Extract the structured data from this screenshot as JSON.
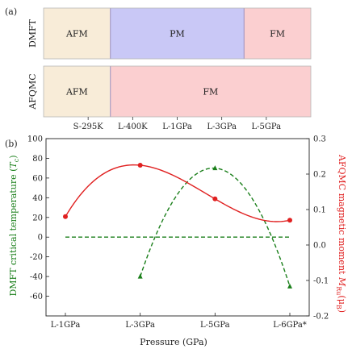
{
  "panel_a": {
    "label": "(a)",
    "x_ticks": [
      "S-295K",
      "L-400K",
      "L-1GPa",
      "L-3GPa",
      "L-5GPa"
    ],
    "rows": [
      {
        "name": "DMFT",
        "segments": [
          {
            "phase": "AFM",
            "from": 0,
            "to": 1.5,
            "color": "#f8ecd8"
          },
          {
            "phase": "PM",
            "from": 1.5,
            "to": 4.5,
            "color": "#c9c8f6"
          },
          {
            "phase": "FM",
            "from": 4.5,
            "to": 6.0,
            "color": "#fbcfd0"
          }
        ]
      },
      {
        "name": "AFQMC",
        "segments": [
          {
            "phase": "AFM",
            "from": 0,
            "to": 1.5,
            "color": "#f8ecd8"
          },
          {
            "phase": "FM",
            "from": 1.5,
            "to": 6.0,
            "color": "#fbcfd0"
          }
        ]
      }
    ]
  },
  "panel_b": {
    "label": "(b)"
  },
  "chart_data": {
    "type": "line",
    "title": "",
    "xlabel": "Pressure (GPa)",
    "categories": [
      "L-1GPa",
      "L-3GPa",
      "L-5GPa",
      "L-6GPa*"
    ],
    "ylabel": "DMFT critical temperature (Tc)",
    "ylim": [
      -80,
      100
    ],
    "y_ticks": [
      -60,
      -40,
      -20,
      0,
      20,
      40,
      60,
      80,
      100
    ],
    "y2label": "AFQMC magnetic moment M_Ru(μB)",
    "y2lim": [
      -0.2,
      0.3
    ],
    "y2_ticks": [
      "-0.2",
      "-0.1",
      "0.0",
      "0.1",
      "0.2",
      "0.3"
    ],
    "series": [
      {
        "axis": "left",
        "color": "#1a7f1a",
        "style": "dashed",
        "marker": "triangle",
        "points": [
          {
            "x": "L-3GPa",
            "y": -40
          },
          {
            "x": "L-5GPa",
            "y": 70
          },
          {
            "x": "L-6GPa*",
            "y": -50
          }
        ]
      },
      {
        "axis": "right",
        "color": "#e02020",
        "style": "solid",
        "marker": "circle",
        "points": [
          {
            "x": "L-1GPa",
            "y": 0.08
          },
          {
            "x": "L-3GPa",
            "y": 0.225
          },
          {
            "x": "L-5GPa",
            "y": 0.13
          },
          {
            "x": "L-6GPa*",
            "y": 0.07
          }
        ]
      },
      {
        "axis": "left",
        "color": "#1a7f1a",
        "style": "dashed",
        "marker": "none",
        "points": [
          {
            "x": "L-1GPa",
            "y": 0
          },
          {
            "x": "L-6GPa*",
            "y": 0
          }
        ]
      }
    ]
  }
}
